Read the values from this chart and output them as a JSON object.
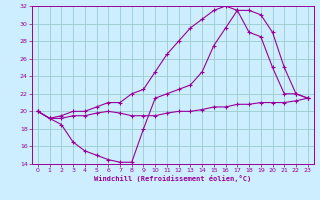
{
  "xlabel": "Windchill (Refroidissement éolien,°C)",
  "bg_color": "#cceeff",
  "line_color": "#990099",
  "grid_color": "#99cccc",
  "xlim": [
    -0.5,
    23.5
  ],
  "ylim": [
    14,
    32
  ],
  "xticks": [
    0,
    1,
    2,
    3,
    4,
    5,
    6,
    7,
    8,
    9,
    10,
    11,
    12,
    13,
    14,
    15,
    16,
    17,
    18,
    19,
    20,
    21,
    22,
    23
  ],
  "yticks": [
    14,
    16,
    18,
    20,
    22,
    24,
    26,
    28,
    30,
    32
  ],
  "line1_x": [
    0,
    1,
    2,
    3,
    4,
    5,
    6,
    7,
    8,
    9,
    10,
    11,
    12,
    13,
    14,
    15,
    16,
    17,
    18,
    19,
    20,
    21,
    22,
    23
  ],
  "line1_y": [
    20.0,
    19.2,
    18.5,
    16.5,
    15.5,
    15.0,
    14.5,
    14.2,
    14.2,
    18.0,
    21.5,
    22.0,
    22.5,
    23.0,
    24.5,
    27.5,
    29.5,
    31.5,
    31.5,
    31.0,
    29.0,
    25.0,
    22.0,
    21.5
  ],
  "line2_x": [
    0,
    1,
    2,
    3,
    4,
    5,
    6,
    7,
    8,
    9,
    10,
    11,
    12,
    13,
    14,
    15,
    16,
    17,
    18,
    19,
    20,
    21,
    22,
    23
  ],
  "line2_y": [
    20.0,
    19.2,
    19.5,
    20.0,
    20.0,
    20.5,
    21.0,
    21.0,
    22.0,
    22.5,
    24.5,
    26.5,
    28.0,
    29.5,
    30.5,
    31.5,
    32.0,
    31.5,
    29.0,
    28.5,
    25.0,
    22.0,
    22.0,
    21.5
  ],
  "line3_x": [
    0,
    1,
    2,
    3,
    4,
    5,
    6,
    7,
    8,
    9,
    10,
    11,
    12,
    13,
    14,
    15,
    16,
    17,
    18,
    19,
    20,
    21,
    22,
    23
  ],
  "line3_y": [
    20.0,
    19.2,
    19.2,
    19.5,
    19.5,
    19.8,
    20.0,
    19.8,
    19.5,
    19.5,
    19.5,
    19.8,
    20.0,
    20.0,
    20.2,
    20.5,
    20.5,
    20.8,
    20.8,
    21.0,
    21.0,
    21.0,
    21.2,
    21.5
  ]
}
